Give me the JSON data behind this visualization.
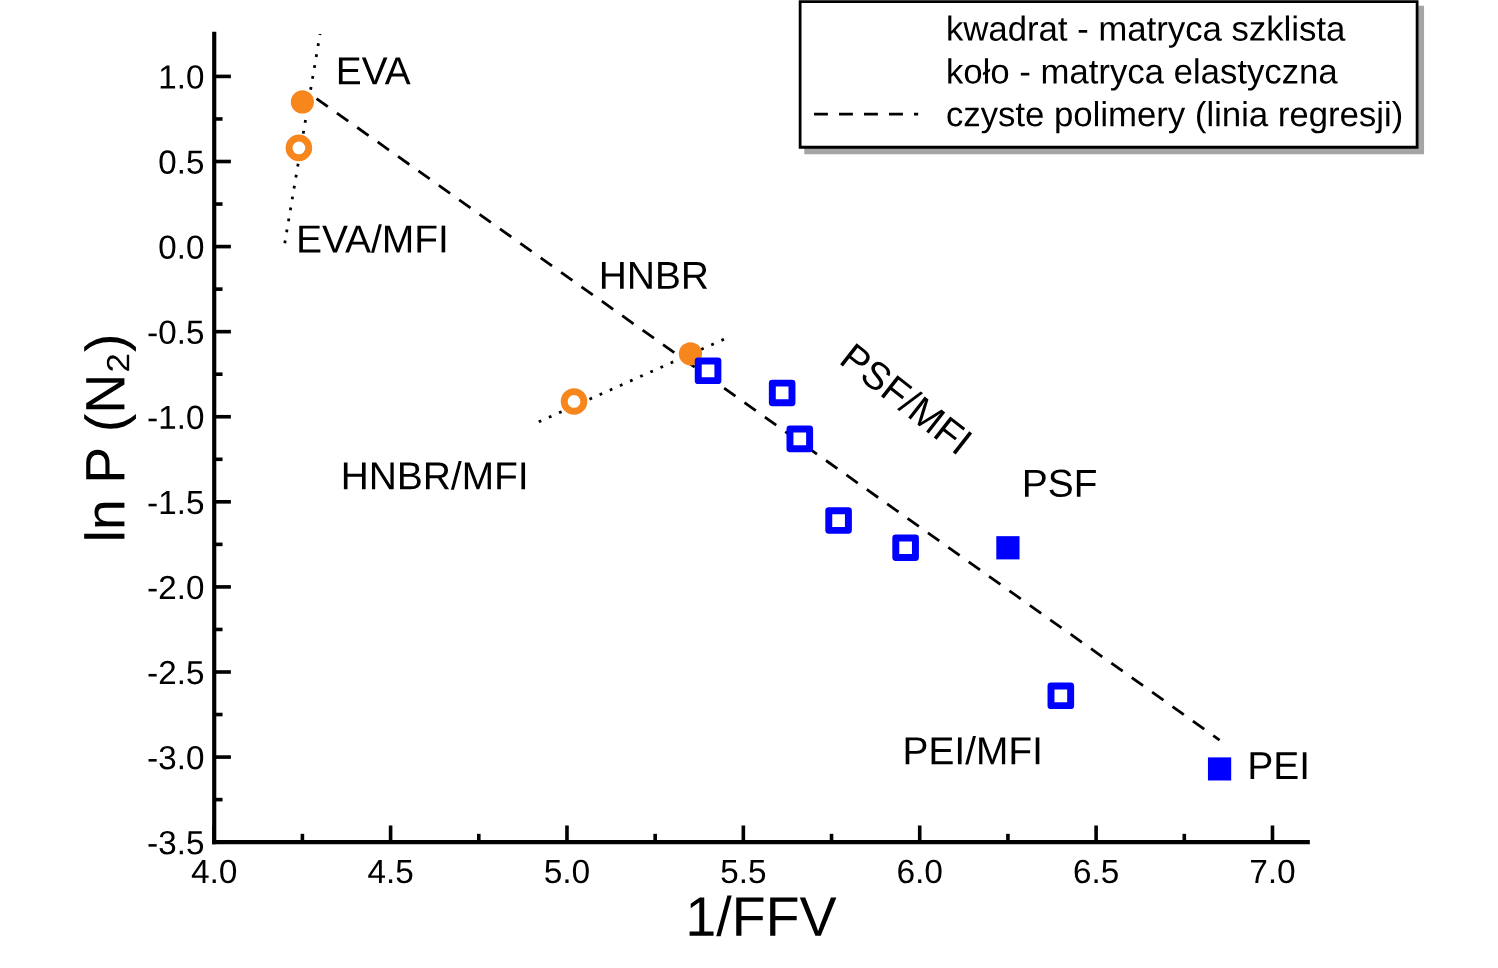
{
  "chart_data": {
    "type": "scatter",
    "xlabel": "1/FFV",
    "ylabel": "ln P (N₂)",
    "xlim": [
      4.0,
      7.1
    ],
    "ylim": [
      -3.5,
      1.25
    ],
    "xticks": [
      {
        "value": 4.0,
        "label": "4.0"
      },
      {
        "value": 4.5,
        "label": "4.5"
      },
      {
        "value": 5.0,
        "label": "5.0"
      },
      {
        "value": 5.5,
        "label": "5.5"
      },
      {
        "value": 6.0,
        "label": "6.0"
      },
      {
        "value": 6.5,
        "label": "6.5"
      },
      {
        "value": 7.0,
        "label": "7.0"
      }
    ],
    "yticks": [
      {
        "value": -3.5,
        "label": "-3.5"
      },
      {
        "value": -3.0,
        "label": "-3.0"
      },
      {
        "value": -2.5,
        "label": "-2.5"
      },
      {
        "value": -2.0,
        "label": "-2.0"
      },
      {
        "value": -1.5,
        "label": "-1.5"
      },
      {
        "value": -1.0,
        "label": "-1.0"
      },
      {
        "value": -0.5,
        "label": "-0.5"
      },
      {
        "value": 0.0,
        "label": "0.0"
      },
      {
        "value": 0.5,
        "label": "0.5"
      },
      {
        "value": 1.0,
        "label": "1.0"
      }
    ],
    "grid": false,
    "legend": "top right",
    "series": [
      {
        "type": "line",
        "line_style": "dotted",
        "marker": "none",
        "color": "#000000",
        "x": [
          4.2,
          4.3
        ],
        "values": [
          0.02,
          1.25
        ]
      },
      {
        "type": "line",
        "line_style": "dotted",
        "marker": "none",
        "color": "#000000",
        "x": [
          4.92,
          5.45
        ],
        "values": [
          -1.03,
          -0.54
        ]
      },
      {
        "type": "line",
        "name": "czyste polimery (linia regresji)",
        "line_style": "dashed",
        "marker": "none",
        "color": "#000000",
        "x": [
          4.29,
          6.85
        ],
        "values": [
          0.87,
          -2.9
        ]
      },
      {
        "marker": "circle",
        "color": "#f7861c",
        "x": [
          4.25,
          5.35
        ],
        "values": [
          0.85,
          -0.63
        ]
      },
      {
        "marker": "circle",
        "color": "#f7861c",
        "x": [
          4.24,
          5.02
        ],
        "values": [
          0.58,
          -0.91
        ]
      },
      {
        "marker": "square",
        "color": "#0000ff",
        "x": [
          6.25,
          6.85
        ],
        "values": [
          -1.77,
          -3.07
        ]
      },
      {
        "marker": "square",
        "color": "#0000ff",
        "x": [
          5.4,
          5.61,
          5.66,
          5.77,
          5.96,
          6.4
        ],
        "values": [
          -0.73,
          -0.86,
          -1.13,
          -1.61,
          -1.77,
          -2.64
        ]
      }
    ],
    "annotations": [
      "kwadrat - matryca szklista",
      "koło - matryca elastyczna",
      {
        "text": "EVA",
        "x": 4.25,
        "y": 0.85
      },
      {
        "text": "EVA/MFI",
        "x": 4.24,
        "y": 0.58
      },
      {
        "text": "HNBR",
        "x": 5.35,
        "y": -0.63
      },
      {
        "text": "HNBR/MFI",
        "x": 5.02,
        "y": -0.91
      },
      "PSF/MFI",
      {
        "text": "PSF",
        "x": 6.25,
        "y": -1.77
      },
      {
        "text": "PEI/MFI",
        "x": 6.4,
        "y": -2.64
      },
      {
        "text": "PEI",
        "x": 6.85,
        "y": -3.07
      }
    ]
  }
}
